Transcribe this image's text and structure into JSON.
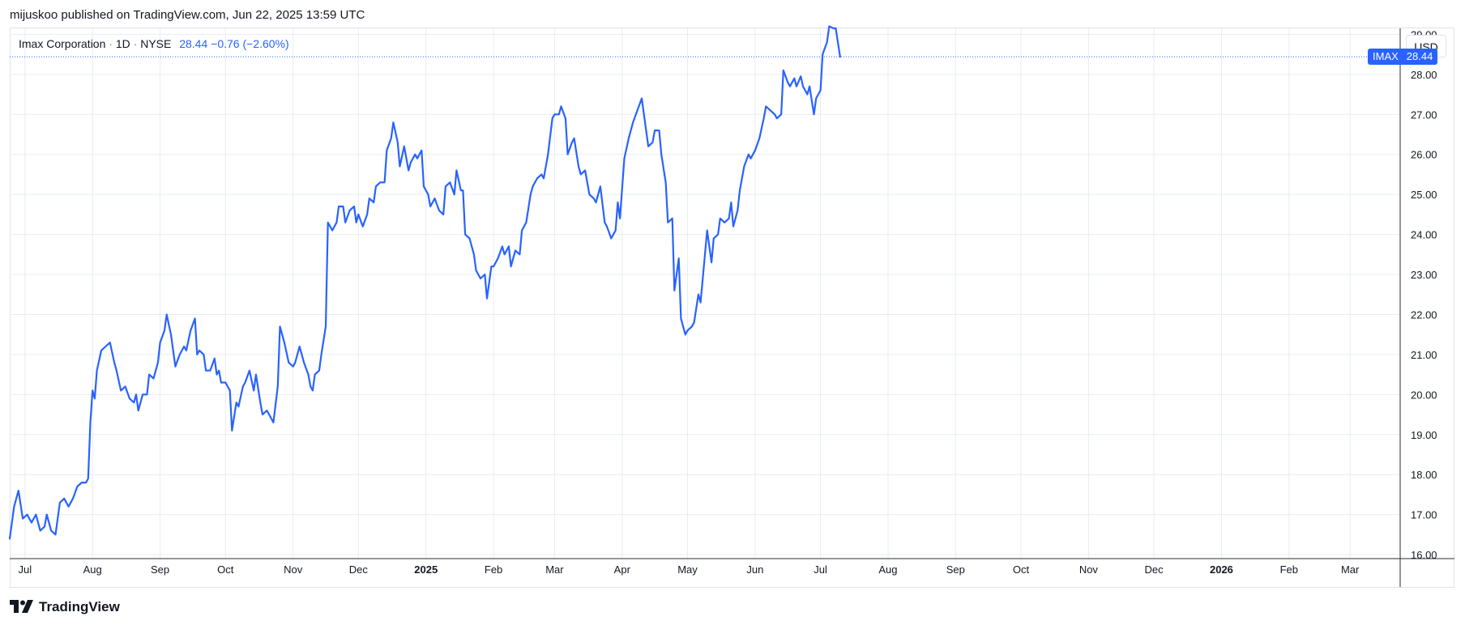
{
  "publisher_line": "mijuskoo published on TradingView.com, Jun 22, 2025 13:59 UTC",
  "legend": {
    "name": "Imax Corporation",
    "sep1": "·",
    "interval": "1D",
    "sep2": "·",
    "exchange": "NYSE",
    "value": "28.44 −0.76 (−2.60%)"
  },
  "currency_button": "USD",
  "last_price_tag": {
    "symbol": "IMAX",
    "price": "28.44"
  },
  "branding": "TradingView",
  "colors": {
    "line": "#2962ff",
    "grid": "#e8ecf2",
    "axis_text": "#131722"
  },
  "chart_data": {
    "type": "line",
    "title": "",
    "xlabel": "",
    "ylabel": "",
    "ylim": [
      15.9,
      29.15
    ],
    "xlim": [
      "2024-06-24",
      "2026-03-24"
    ],
    "grid": true,
    "last_value": 28.44,
    "y_ticks": [
      "16.00",
      "17.00",
      "18.00",
      "19.00",
      "20.00",
      "21.00",
      "22.00",
      "23.00",
      "24.00",
      "25.00",
      "26.00",
      "27.00",
      "28.00",
      "29.00"
    ],
    "x_ticks": [
      {
        "date": "2024-07-01",
        "label": "Jul",
        "bold": false
      },
      {
        "date": "2024-08-01",
        "label": "Aug",
        "bold": false
      },
      {
        "date": "2024-09-01",
        "label": "Sep",
        "bold": false
      },
      {
        "date": "2024-10-01",
        "label": "Oct",
        "bold": false
      },
      {
        "date": "2024-11-01",
        "label": "Nov",
        "bold": false
      },
      {
        "date": "2024-12-01",
        "label": "Dec",
        "bold": false
      },
      {
        "date": "2025-01-01",
        "label": "2025",
        "bold": true
      },
      {
        "date": "2025-02-01",
        "label": "Feb",
        "bold": false
      },
      {
        "date": "2025-03-01",
        "label": "Mar",
        "bold": false
      },
      {
        "date": "2025-04-01",
        "label": "Apr",
        "bold": false
      },
      {
        "date": "2025-05-01",
        "label": "May",
        "bold": false
      },
      {
        "date": "2025-06-01",
        "label": "Jun",
        "bold": false
      },
      {
        "date": "2025-07-01",
        "label": "Jul",
        "bold": false
      },
      {
        "date": "2025-08-01",
        "label": "Aug",
        "bold": false
      },
      {
        "date": "2025-09-01",
        "label": "Sep",
        "bold": false
      },
      {
        "date": "2025-10-01",
        "label": "Oct",
        "bold": false
      },
      {
        "date": "2025-11-01",
        "label": "Nov",
        "bold": false
      },
      {
        "date": "2025-12-01",
        "label": "Dec",
        "bold": false
      },
      {
        "date": "2026-01-01",
        "label": "2026",
        "bold": true
      },
      {
        "date": "2026-02-01",
        "label": "Feb",
        "bold": false
      },
      {
        "date": "2026-03-01",
        "label": "Mar",
        "bold": false
      }
    ],
    "series": [
      {
        "points": [
          [
            "2024-06-24",
            16.4
          ],
          [
            "2024-06-26",
            17.2
          ],
          [
            "2024-06-28",
            17.6
          ],
          [
            "2024-06-30",
            16.9
          ],
          [
            "2024-07-02",
            17.0
          ],
          [
            "2024-07-04",
            16.8
          ],
          [
            "2024-07-06",
            17.0
          ],
          [
            "2024-07-08",
            16.6
          ],
          [
            "2024-07-10",
            16.7
          ],
          [
            "2024-07-11",
            17.0
          ],
          [
            "2024-07-13",
            16.6
          ],
          [
            "2024-07-15",
            16.5
          ],
          [
            "2024-07-17",
            17.3
          ],
          [
            "2024-07-19",
            17.4
          ],
          [
            "2024-07-21",
            17.2
          ],
          [
            "2024-07-23",
            17.4
          ],
          [
            "2024-07-25",
            17.7
          ],
          [
            "2024-07-27",
            17.8
          ],
          [
            "2024-07-29",
            17.8
          ],
          [
            "2024-07-30",
            17.9
          ],
          [
            "2024-07-31",
            19.3
          ],
          [
            "2024-08-01",
            20.1
          ],
          [
            "2024-08-02",
            19.9
          ],
          [
            "2024-08-03",
            20.6
          ],
          [
            "2024-08-05",
            21.1
          ],
          [
            "2024-08-07",
            21.2
          ],
          [
            "2024-08-09",
            21.3
          ],
          [
            "2024-08-11",
            20.8
          ],
          [
            "2024-08-12",
            20.6
          ],
          [
            "2024-08-14",
            20.1
          ],
          [
            "2024-08-16",
            20.2
          ],
          [
            "2024-08-18",
            19.9
          ],
          [
            "2024-08-20",
            19.8
          ],
          [
            "2024-08-21",
            20.0
          ],
          [
            "2024-08-22",
            19.6
          ],
          [
            "2024-08-24",
            20.0
          ],
          [
            "2024-08-26",
            20.0
          ],
          [
            "2024-08-27",
            20.5
          ],
          [
            "2024-08-29",
            20.4
          ],
          [
            "2024-08-31",
            20.8
          ],
          [
            "2024-09-01",
            21.3
          ],
          [
            "2024-09-03",
            21.6
          ],
          [
            "2024-09-04",
            22.0
          ],
          [
            "2024-09-06",
            21.5
          ],
          [
            "2024-09-08",
            20.7
          ],
          [
            "2024-09-10",
            21.0
          ],
          [
            "2024-09-12",
            21.2
          ],
          [
            "2024-09-13",
            21.1
          ],
          [
            "2024-09-15",
            21.6
          ],
          [
            "2024-09-17",
            21.9
          ],
          [
            "2024-09-18",
            21.0
          ],
          [
            "2024-09-19",
            21.1
          ],
          [
            "2024-09-21",
            21.0
          ],
          [
            "2024-09-22",
            20.6
          ],
          [
            "2024-09-24",
            20.6
          ],
          [
            "2024-09-26",
            20.9
          ],
          [
            "2024-09-27",
            20.5
          ],
          [
            "2024-09-28",
            20.6
          ],
          [
            "2024-09-29",
            20.3
          ],
          [
            "2024-10-01",
            20.3
          ],
          [
            "2024-10-03",
            20.1
          ],
          [
            "2024-10-04",
            19.1
          ],
          [
            "2024-10-06",
            19.8
          ],
          [
            "2024-10-07",
            19.7
          ],
          [
            "2024-10-09",
            20.2
          ],
          [
            "2024-10-10",
            20.3
          ],
          [
            "2024-10-12",
            20.6
          ],
          [
            "2024-10-14",
            20.1
          ],
          [
            "2024-10-15",
            20.5
          ],
          [
            "2024-10-17",
            19.8
          ],
          [
            "2024-10-18",
            19.5
          ],
          [
            "2024-10-20",
            19.6
          ],
          [
            "2024-10-22",
            19.4
          ],
          [
            "2024-10-23",
            19.3
          ],
          [
            "2024-10-25",
            20.2
          ],
          [
            "2024-10-26",
            21.7
          ],
          [
            "2024-10-28",
            21.3
          ],
          [
            "2024-10-30",
            20.8
          ],
          [
            "2024-11-01",
            20.7
          ],
          [
            "2024-11-02",
            20.8
          ],
          [
            "2024-11-04",
            21.2
          ],
          [
            "2024-11-06",
            20.8
          ],
          [
            "2024-11-08",
            20.5
          ],
          [
            "2024-11-09",
            20.2
          ],
          [
            "2024-11-10",
            20.1
          ],
          [
            "2024-11-11",
            20.5
          ],
          [
            "2024-11-13",
            20.6
          ],
          [
            "2024-11-14",
            21.0
          ],
          [
            "2024-11-16",
            21.7
          ],
          [
            "2024-11-17",
            24.3
          ],
          [
            "2024-11-19",
            24.1
          ],
          [
            "2024-11-21",
            24.3
          ],
          [
            "2024-11-22",
            24.7
          ],
          [
            "2024-11-24",
            24.7
          ],
          [
            "2024-11-25",
            24.3
          ],
          [
            "2024-11-27",
            24.6
          ],
          [
            "2024-11-29",
            24.7
          ],
          [
            "2024-11-30",
            24.3
          ],
          [
            "2024-12-01",
            24.5
          ],
          [
            "2024-12-03",
            24.2
          ],
          [
            "2024-12-05",
            24.5
          ],
          [
            "2024-12-06",
            24.9
          ],
          [
            "2024-12-08",
            24.8
          ],
          [
            "2024-12-09",
            25.2
          ],
          [
            "2024-12-11",
            25.3
          ],
          [
            "2024-12-13",
            25.3
          ],
          [
            "2024-12-14",
            26.1
          ],
          [
            "2024-12-16",
            26.4
          ],
          [
            "2024-12-17",
            26.8
          ],
          [
            "2024-12-19",
            26.3
          ],
          [
            "2024-12-20",
            25.7
          ],
          [
            "2024-12-22",
            26.2
          ],
          [
            "2024-12-24",
            25.6
          ],
          [
            "2024-12-25",
            25.8
          ],
          [
            "2024-12-27",
            26.0
          ],
          [
            "2024-12-28",
            25.9
          ],
          [
            "2024-12-30",
            26.1
          ],
          [
            "2024-12-31",
            25.2
          ],
          [
            "2025-01-02",
            25.0
          ],
          [
            "2025-01-03",
            24.7
          ],
          [
            "2025-01-05",
            24.9
          ],
          [
            "2025-01-07",
            24.6
          ],
          [
            "2025-01-09",
            24.5
          ],
          [
            "2025-01-10",
            25.2
          ],
          [
            "2025-01-12",
            25.3
          ],
          [
            "2025-01-14",
            25.0
          ],
          [
            "2025-01-15",
            25.6
          ],
          [
            "2025-01-17",
            25.1
          ],
          [
            "2025-01-18",
            25.1
          ],
          [
            "2025-01-19",
            24.0
          ],
          [
            "2025-01-21",
            23.9
          ],
          [
            "2025-01-23",
            23.5
          ],
          [
            "2025-01-24",
            23.1
          ],
          [
            "2025-01-26",
            22.9
          ],
          [
            "2025-01-28",
            23.0
          ],
          [
            "2025-01-29",
            22.4
          ],
          [
            "2025-01-31",
            23.2
          ],
          [
            "2025-02-01",
            23.2
          ],
          [
            "2025-02-03",
            23.4
          ],
          [
            "2025-02-05",
            23.7
          ],
          [
            "2025-02-06",
            23.5
          ],
          [
            "2025-02-08",
            23.7
          ],
          [
            "2025-02-09",
            23.2
          ],
          [
            "2025-02-11",
            23.6
          ],
          [
            "2025-02-13",
            23.5
          ],
          [
            "2025-02-14",
            24.1
          ],
          [
            "2025-02-16",
            24.3
          ],
          [
            "2025-02-18",
            25.0
          ],
          [
            "2025-02-19",
            25.2
          ],
          [
            "2025-02-21",
            25.4
          ],
          [
            "2025-02-23",
            25.5
          ],
          [
            "2025-02-24",
            25.4
          ],
          [
            "2025-02-26",
            26.0
          ],
          [
            "2025-02-28",
            26.9
          ],
          [
            "2025-03-01",
            27.0
          ],
          [
            "2025-03-03",
            27.0
          ],
          [
            "2025-03-04",
            27.2
          ],
          [
            "2025-03-06",
            26.9
          ],
          [
            "2025-03-07",
            26.0
          ],
          [
            "2025-03-09",
            26.3
          ],
          [
            "2025-03-10",
            26.4
          ],
          [
            "2025-03-12",
            25.7
          ],
          [
            "2025-03-13",
            25.5
          ],
          [
            "2025-03-15",
            25.6
          ],
          [
            "2025-03-17",
            25.0
          ],
          [
            "2025-03-19",
            24.9
          ],
          [
            "2025-03-20",
            24.8
          ],
          [
            "2025-03-22",
            25.2
          ],
          [
            "2025-03-24",
            24.3
          ],
          [
            "2025-03-25",
            24.2
          ],
          [
            "2025-03-27",
            23.9
          ],
          [
            "2025-03-29",
            24.1
          ],
          [
            "2025-03-30",
            24.8
          ],
          [
            "2025-03-31",
            24.4
          ],
          [
            "2025-04-02",
            25.9
          ],
          [
            "2025-04-04",
            26.4
          ],
          [
            "2025-04-06",
            26.8
          ],
          [
            "2025-04-08",
            27.1
          ],
          [
            "2025-04-10",
            27.4
          ],
          [
            "2025-04-11",
            27.0
          ],
          [
            "2025-04-13",
            26.2
          ],
          [
            "2025-04-15",
            26.3
          ],
          [
            "2025-04-16",
            26.6
          ],
          [
            "2025-04-18",
            26.6
          ],
          [
            "2025-04-19",
            26.0
          ],
          [
            "2025-04-21",
            25.3
          ],
          [
            "2025-04-22",
            24.3
          ],
          [
            "2025-04-24",
            24.4
          ],
          [
            "2025-04-25",
            22.6
          ],
          [
            "2025-04-27",
            23.4
          ],
          [
            "2025-04-28",
            21.9
          ],
          [
            "2025-04-30",
            21.5
          ],
          [
            "2025-05-01",
            21.6
          ],
          [
            "2025-05-03",
            21.7
          ],
          [
            "2025-05-04",
            21.8
          ],
          [
            "2025-05-06",
            22.5
          ],
          [
            "2025-05-07",
            22.3
          ],
          [
            "2025-05-09",
            23.5
          ],
          [
            "2025-05-10",
            24.1
          ],
          [
            "2025-05-12",
            23.3
          ],
          [
            "2025-05-13",
            23.9
          ],
          [
            "2025-05-15",
            24.0
          ],
          [
            "2025-05-16",
            24.4
          ],
          [
            "2025-05-18",
            24.3
          ],
          [
            "2025-05-20",
            24.4
          ],
          [
            "2025-05-21",
            24.8
          ],
          [
            "2025-05-22",
            24.2
          ],
          [
            "2025-05-24",
            24.6
          ],
          [
            "2025-05-25",
            25.1
          ],
          [
            "2025-05-27",
            25.7
          ],
          [
            "2025-05-29",
            26.0
          ],
          [
            "2025-05-30",
            25.9
          ],
          [
            "2025-06-01",
            26.1
          ],
          [
            "2025-06-03",
            26.4
          ],
          [
            "2025-06-05",
            26.9
          ],
          [
            "2025-06-06",
            27.2
          ],
          [
            "2025-06-08",
            27.1
          ],
          [
            "2025-06-10",
            27.0
          ],
          [
            "2025-06-11",
            26.9
          ],
          [
            "2025-06-13",
            27.0
          ],
          [
            "2025-06-14",
            28.1
          ],
          [
            "2025-06-16",
            27.8
          ],
          [
            "2025-06-17",
            27.7
          ],
          [
            "2025-06-19",
            27.9
          ],
          [
            "2025-06-20",
            27.7
          ],
          [
            "2025-06-22",
            27.95
          ],
          [
            "2025-06-23",
            27.7
          ],
          [
            "2025-06-25",
            27.5
          ],
          [
            "2025-06-26",
            27.7
          ],
          [
            "2025-06-28",
            27.0
          ],
          [
            "2025-06-29",
            27.4
          ],
          [
            "2025-07-01",
            27.6
          ],
          [
            "2025-07-02",
            28.5
          ],
          [
            "2025-07-04",
            28.8
          ],
          [
            "2025-07-05",
            29.2
          ],
          [
            "2025-07-07",
            29.15
          ],
          [
            "2025-07-08",
            29.15
          ],
          [
            "2025-07-10",
            28.44
          ]
        ]
      }
    ]
  }
}
